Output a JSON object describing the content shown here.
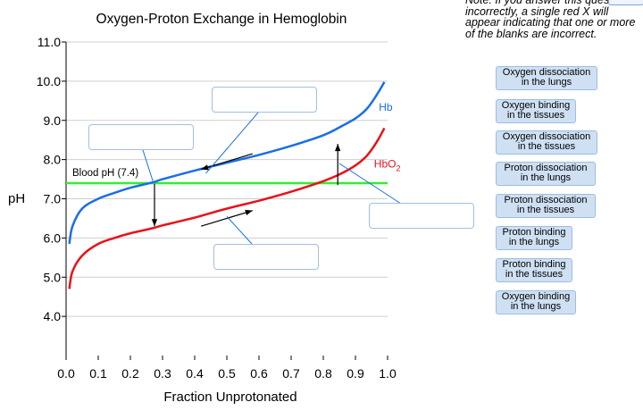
{
  "note": "Note: If you answer this question incorrectly, a single red X will appear indicating that one or more of the blanks are incorrect.",
  "colors": {
    "hb": "#1a6ee6",
    "hbo2": "#e8121a",
    "blood_ph_line": "#33ee33",
    "grid": "#cfcfcf"
  },
  "chart_data": {
    "type": "line",
    "title": "Oxygen-Proton Exchange in Hemoglobin",
    "xlabel": "Fraction Unprotonated",
    "ylabel": "pH",
    "xlim": [
      0.0,
      1.0
    ],
    "ylim": [
      3.0,
      11.0
    ],
    "x_ticks": [
      "0.0",
      "0.1",
      "0.2",
      "0.3",
      "0.4",
      "0.5",
      "0.6",
      "0.7",
      "0.8",
      "0.9",
      "1.0"
    ],
    "y_ticks": [
      "4.0",
      "5.0",
      "6.0",
      "7.0",
      "8.0",
      "9.0",
      "10.0",
      "11.0"
    ],
    "grid": "horizontal",
    "series": [
      {
        "name": "Hb",
        "color": "#1a6ee6",
        "x": [
          0.01,
          0.02,
          0.05,
          0.1,
          0.15,
          0.2,
          0.27,
          0.3,
          0.4,
          0.5,
          0.6,
          0.7,
          0.8,
          0.85,
          0.9,
          0.93,
          0.95,
          0.97,
          0.99
        ],
        "y": [
          5.85,
          6.3,
          6.75,
          7.0,
          7.15,
          7.28,
          7.42,
          7.5,
          7.72,
          7.92,
          8.12,
          8.35,
          8.62,
          8.82,
          9.05,
          9.25,
          9.45,
          9.7,
          9.98
        ]
      },
      {
        "name": "HbO2",
        "color": "#e8121a",
        "x": [
          0.01,
          0.02,
          0.05,
          0.1,
          0.15,
          0.2,
          0.27,
          0.3,
          0.4,
          0.5,
          0.6,
          0.7,
          0.8,
          0.85,
          0.9,
          0.93,
          0.95,
          0.97,
          0.99
        ],
        "y": [
          4.7,
          5.15,
          5.55,
          5.85,
          6.0,
          6.12,
          6.25,
          6.32,
          6.52,
          6.75,
          6.95,
          7.18,
          7.45,
          7.62,
          7.85,
          8.05,
          8.25,
          8.5,
          8.8
        ]
      }
    ],
    "reference_line": {
      "label": "Blood pH (7.4)",
      "y": 7.4
    },
    "curve_labels": [
      {
        "series": "Hb",
        "text": "Hb",
        "x": 0.995,
        "y": 9.25
      },
      {
        "series": "HbO2",
        "text": "HbO",
        "subscript": "2",
        "x": 0.98,
        "y": 7.8
      }
    ],
    "transition_arrows": [
      {
        "from": [
          0.275,
          7.38
        ],
        "to": [
          0.275,
          6.3
        ]
      },
      {
        "from": [
          0.845,
          7.35
        ],
        "to": [
          0.845,
          8.4
        ]
      },
      {
        "from": [
          0.58,
          8.15
        ],
        "to": [
          0.42,
          7.75
        ]
      },
      {
        "from": [
          0.42,
          6.3
        ],
        "to": [
          0.58,
          6.7
        ]
      }
    ],
    "blank_pointers": [
      {
        "blank": 0,
        "to": [
          0.435,
          7.65
        ]
      },
      {
        "blank": 1,
        "to": [
          0.27,
          7.45
        ]
      },
      {
        "blank": 2,
        "to": [
          0.85,
          7.9
        ]
      },
      {
        "blank": 3,
        "to": [
          0.5,
          6.55
        ]
      }
    ]
  },
  "answer_tiles": [
    "Oxygen dissociation in the lungs",
    "Oxygen binding in the tissues",
    "Oxygen dissociation in the tissues",
    "Proton dissociation in the lungs",
    "Proton dissociation in the tissues",
    "Proton binding in the lungs",
    "Proton binding in the tissues",
    "Oxygen binding in the lungs"
  ]
}
